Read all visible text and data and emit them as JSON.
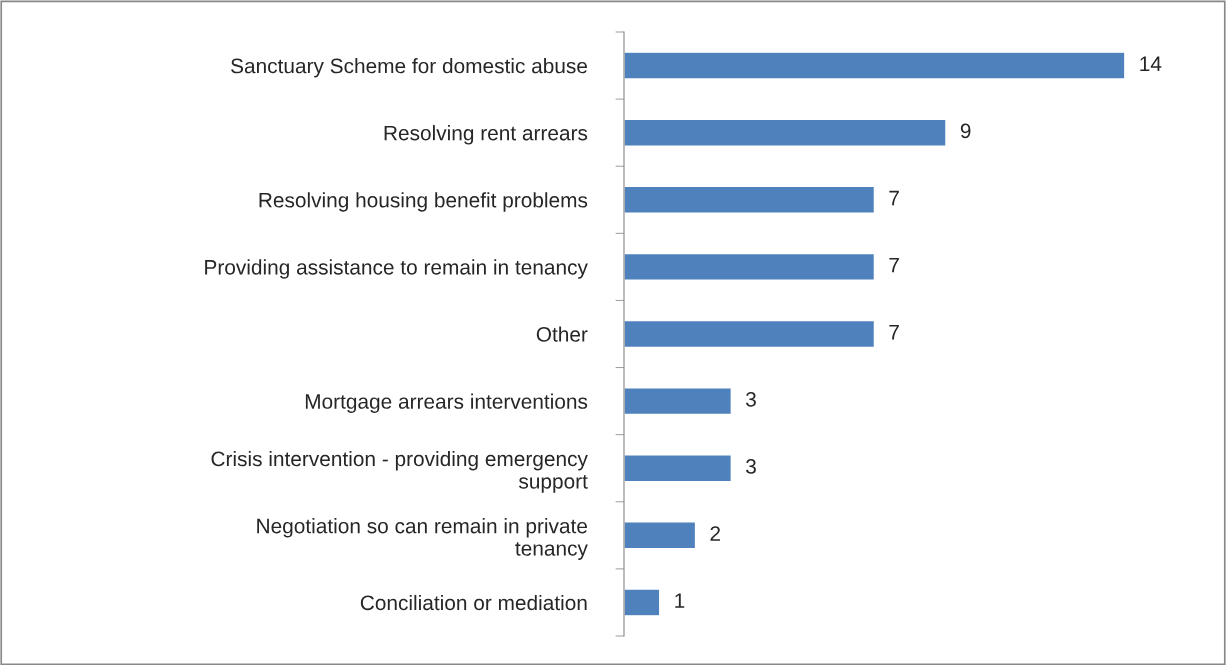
{
  "chart_data": {
    "type": "bar",
    "orientation": "horizontal",
    "categories": [
      "Sanctuary Scheme for domestic abuse",
      "Resolving rent arrears",
      "Resolving housing benefit problems",
      "Providing assistance to remain in tenancy",
      "Other",
      "Mortgage arrears interventions",
      "Crisis intervention - providing emergency support",
      "Negotiation so can remain in private tenancy",
      "Conciliation or mediation"
    ],
    "values": [
      14,
      9,
      7,
      7,
      7,
      3,
      3,
      2,
      1
    ],
    "color": "#4f81bd",
    "data_labels": true,
    "grid": false,
    "legend": false
  }
}
